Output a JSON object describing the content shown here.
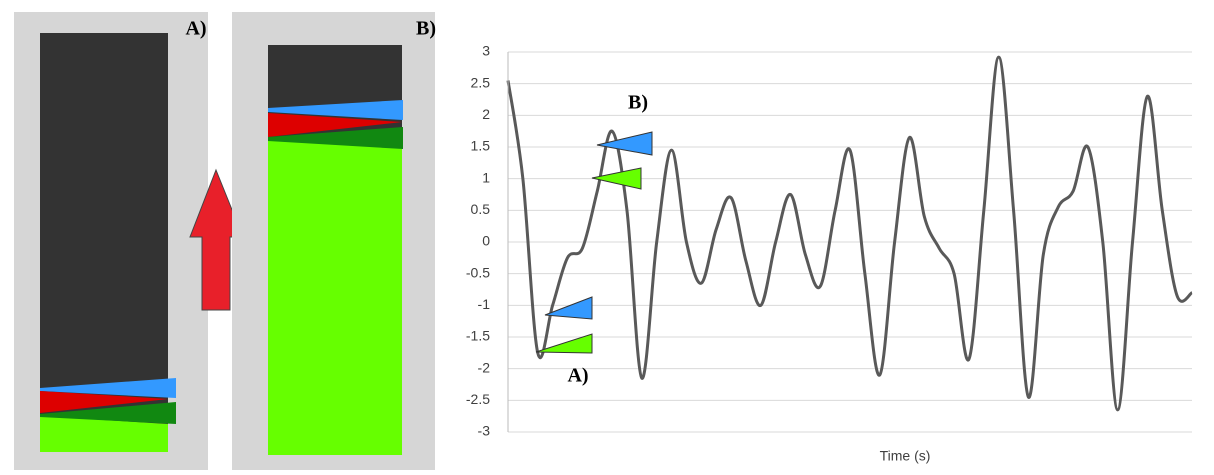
{
  "panels": [
    {
      "label": "A)"
    },
    {
      "label": "B)"
    }
  ],
  "chart_data": {
    "type": "line",
    "x_label": "Time (s)",
    "annotations": [
      "A)",
      "B)"
    ],
    "color": "#595959",
    "values": [
      2.55,
      1.0,
      -1.75,
      -1.0,
      -0.25,
      -0.1,
      0.8,
      1.75,
      0.5,
      -2.15,
      0.0,
      1.45,
      0.0,
      -0.65,
      0.2,
      0.7,
      -0.3,
      -1.0,
      0.0,
      0.75,
      -0.2,
      -0.7,
      0.5,
      1.45,
      -0.5,
      -2.1,
      0.0,
      1.65,
      0.4,
      -0.1,
      -0.5,
      -1.85,
      0.5,
      2.92,
      0.5,
      -2.45,
      -0.2,
      0.55,
      0.8,
      1.5,
      0.0,
      -2.65,
      0.0,
      2.3,
      0.5,
      -0.85,
      -0.8
    ],
    "ylim": [
      -3,
      3
    ],
    "yticks": [
      3,
      2.5,
      2,
      1.5,
      1,
      0.5,
      0,
      -0.5,
      -1,
      -1.5,
      -2,
      -2.5,
      -3
    ],
    "grid": true
  }
}
